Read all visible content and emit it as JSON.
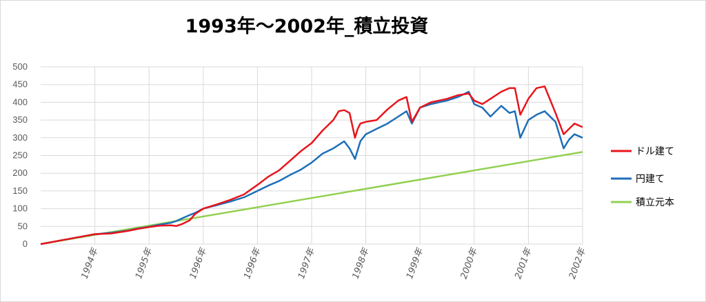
{
  "chart_data": {
    "type": "line",
    "title": "1993年～2002年_積立投資",
    "xlabel": "",
    "ylabel": "",
    "ylim": [
      0,
      500
    ],
    "yticks": [
      0,
      50,
      100,
      150,
      200,
      250,
      300,
      350,
      400,
      450,
      500
    ],
    "x_tick_labels": [
      "1994年",
      "1995年",
      "1996年",
      "1996年",
      "1997年",
      "1998年",
      "1999年",
      "2000年",
      "2001年",
      "2002年"
    ],
    "x_tick_positions": [
      1,
      2,
      3,
      4,
      5,
      6,
      7,
      8,
      9,
      10
    ],
    "xlim": [
      0,
      10
    ],
    "grid": true,
    "legend_position": "right",
    "colors": {
      "dollar": "#e8141b",
      "yen": "#1d6eb8",
      "principal": "#92d050"
    },
    "series": [
      {
        "name": "ドル建て",
        "x": [
          0,
          0.5,
          1,
          1.3,
          1.6,
          1.8,
          2,
          2.2,
          2.4,
          2.5,
          2.6,
          2.75,
          2.85,
          3,
          3.25,
          3.5,
          3.75,
          4,
          4.2,
          4.4,
          4.6,
          4.8,
          5,
          5.2,
          5.4,
          5.5,
          5.6,
          5.7,
          5.8,
          5.85,
          5.9,
          6,
          6.2,
          6.4,
          6.6,
          6.75,
          6.85,
          7,
          7.2,
          7.5,
          7.7,
          7.9,
          8,
          8.15,
          8.3,
          8.5,
          8.65,
          8.75,
          8.85,
          9,
          9.15,
          9.3,
          9.5,
          9.65,
          9.75,
          9.85,
          10
        ],
        "values": [
          0,
          14,
          28,
          30,
          37,
          43,
          48,
          52,
          53,
          51,
          56,
          67,
          85,
          100,
          112,
          125,
          140,
          167,
          190,
          208,
          235,
          262,
          285,
          320,
          350,
          375,
          378,
          370,
          300,
          325,
          340,
          345,
          350,
          380,
          405,
          415,
          345,
          385,
          400,
          410,
          420,
          425,
          405,
          395,
          410,
          430,
          440,
          440,
          365,
          410,
          440,
          445,
          370,
          310,
          325,
          340,
          330
        ]
      },
      {
        "name": "円建て",
        "x": [
          0,
          0.5,
          1,
          1.3,
          1.6,
          1.8,
          2,
          2.2,
          2.4,
          2.5,
          2.6,
          2.75,
          2.85,
          3,
          3.25,
          3.5,
          3.75,
          4,
          4.2,
          4.4,
          4.6,
          4.8,
          5,
          5.2,
          5.4,
          5.5,
          5.6,
          5.7,
          5.8,
          5.85,
          5.9,
          6,
          6.2,
          6.4,
          6.6,
          6.75,
          6.85,
          7,
          7.2,
          7.5,
          7.7,
          7.9,
          8,
          8.15,
          8.3,
          8.5,
          8.65,
          8.75,
          8.85,
          9,
          9.15,
          9.3,
          9.5,
          9.65,
          9.75,
          9.85,
          10
        ],
        "values": [
          0,
          14,
          28,
          32,
          38,
          44,
          49,
          55,
          60,
          65,
          72,
          82,
          88,
          100,
          110,
          120,
          132,
          150,
          165,
          178,
          195,
          210,
          230,
          255,
          270,
          280,
          290,
          270,
          240,
          265,
          290,
          310,
          325,
          340,
          360,
          375,
          340,
          385,
          395,
          405,
          415,
          430,
          395,
          385,
          360,
          390,
          370,
          375,
          300,
          350,
          365,
          375,
          345,
          270,
          295,
          310,
          300
        ]
      },
      {
        "name": "積立元本",
        "x": [
          0,
          10
        ],
        "values": [
          0,
          260
        ]
      }
    ]
  }
}
